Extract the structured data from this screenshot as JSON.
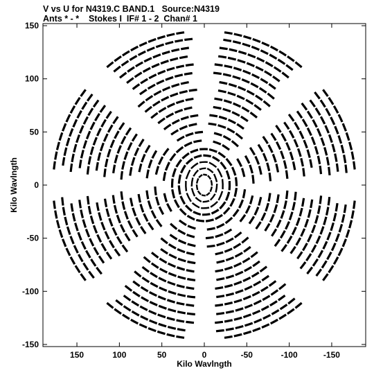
{
  "chart_data": {
    "type": "scatter",
    "title": "V vs U for N4319.C BAND.1   Source:N4319",
    "subtitle": "Ants * - *    Stokes I  IF# 1 - 2  Chan# 1",
    "xlabel": "Kilo Wavlngth",
    "ylabel": "Kilo Wavlngth",
    "xlim": [
      190,
      -190
    ],
    "ylim": [
      -152,
      152
    ],
    "x_reversed": true,
    "x_ticks": [
      150,
      100,
      50,
      0,
      -50,
      -100,
      -150
    ],
    "x_tick_labels": [
      "150",
      "100",
      "50",
      "0",
      "-50",
      "-100",
      "-150"
    ],
    "y_ticks": [
      150,
      100,
      50,
      0,
      -50,
      -100,
      -150
    ],
    "y_tick_labels": [
      "150",
      "100",
      "50",
      "0",
      "-50",
      "-100",
      "-150"
    ],
    "grid": false,
    "marker": "short dashed track segments (uv coverage)",
    "color": "#000000",
    "series": [
      {
        "description": "uv tracks (elliptical arcs, mirrored u,v -> -u,-v)",
        "tracks": [
          {
            "a": 178,
            "b": 145
          },
          {
            "a": 168,
            "b": 138
          },
          {
            "a": 158,
            "b": 130
          },
          {
            "a": 148,
            "b": 122
          },
          {
            "a": 138,
            "b": 114
          },
          {
            "a": 128,
            "b": 106
          },
          {
            "a": 118,
            "b": 98
          },
          {
            "a": 108,
            "b": 90
          },
          {
            "a": 98,
            "b": 82
          },
          {
            "a": 88,
            "b": 74
          },
          {
            "a": 78,
            "b": 66
          },
          {
            "a": 68,
            "b": 58
          },
          {
            "a": 58,
            "b": 50
          },
          {
            "a": 48,
            "b": 42
          },
          {
            "a": 38,
            "b": 34
          },
          {
            "a": 30,
            "b": 28
          },
          {
            "a": 22,
            "b": 22
          },
          {
            "a": 15,
            "b": 16
          },
          {
            "a": 9,
            "b": 10
          }
        ]
      }
    ]
  }
}
